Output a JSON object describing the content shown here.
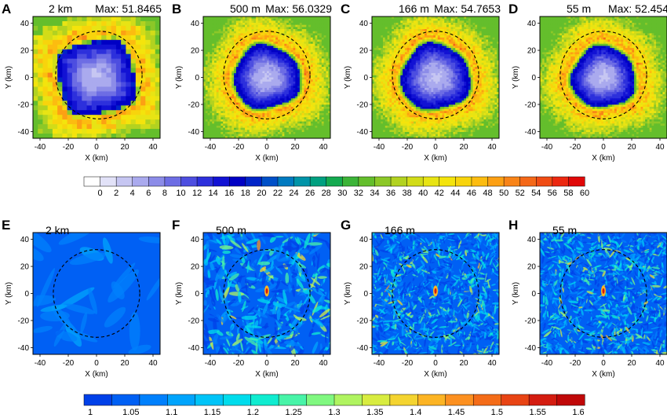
{
  "figure": {
    "rows": [
      {
        "panels": [
          {
            "letter": "A",
            "title": "2 km",
            "max_label": "Max: 51.8465",
            "pattern": "speed",
            "shape": "square",
            "core": 0.3
          },
          {
            "letter": "B",
            "title": "500 m",
            "max_label": "Max: 56.0329",
            "pattern": "speed",
            "shape": "round",
            "core": 0.26
          },
          {
            "letter": "C",
            "title": "166 m",
            "max_label": "Max: 54.7653",
            "pattern": "speed",
            "shape": "round",
            "core": 0.27
          },
          {
            "letter": "D",
            "title": "55 m",
            "max_label": "Max: 52.454",
            "pattern": "speed",
            "shape": "round",
            "core": 0.25
          }
        ],
        "colorbar": {
          "labels": [
            "0",
            "2",
            "4",
            "6",
            "8",
            "10",
            "12",
            "14",
            "16",
            "18",
            "20",
            "22",
            "24",
            "26",
            "28",
            "30",
            "32",
            "34",
            "36",
            "38",
            "40",
            "42",
            "44",
            "46",
            "48",
            "50",
            "52",
            "54",
            "56",
            "58",
            "60"
          ],
          "colors": [
            "#ffffff",
            "#e2e2f8",
            "#c6c6f2",
            "#aaaaee",
            "#8c8ce8",
            "#6d6de4",
            "#4d4ee0",
            "#2d30dc",
            "#1212d4",
            "#0000c4",
            "#0024c8",
            "#0050c8",
            "#007ac0",
            "#0094a8",
            "#00a080",
            "#14aa50",
            "#3cb438",
            "#64be2c",
            "#8cc828",
            "#b2d220",
            "#d2dc18",
            "#e8e414",
            "#f4e40c",
            "#f8d40c",
            "#fcbc10",
            "#fca014",
            "#f88418",
            "#f46818",
            "#f04c14",
            "#ec2810",
            "#e00808"
          ]
        }
      },
      {
        "panels": [
          {
            "letter": "E",
            "title": "2 km",
            "pattern": "ratio",
            "noise": "smooth"
          },
          {
            "letter": "F",
            "title": "500 m",
            "pattern": "ratio",
            "noise": "medium"
          },
          {
            "letter": "G",
            "title": "166 m",
            "pattern": "ratio",
            "noise": "fine"
          },
          {
            "letter": "H",
            "title": "55 m",
            "pattern": "ratio",
            "noise": "fine"
          }
        ],
        "colorbar": {
          "labels": [
            "1",
            "1.05",
            "1.1",
            "1.15",
            "1.2",
            "1.25",
            "1.3",
            "1.35",
            "1.4",
            "1.45",
            "1.5",
            "1.55",
            "1.6"
          ],
          "colors": [
            "#0040e8",
            "#0060f4",
            "#0080fc",
            "#00a4fc",
            "#00c4f8",
            "#00dcec",
            "#10ecd0",
            "#48f4a8",
            "#80f880",
            "#b0f460",
            "#d8ec40",
            "#f4d430",
            "#fcb424",
            "#fc9020",
            "#f46c18",
            "#e84414",
            "#d41c10",
            "#c00808"
          ]
        }
      }
    ],
    "axes": {
      "x_label": "X (km)",
      "y_label": "Y (km)",
      "ticks": [
        "-40",
        "-20",
        "0",
        "20",
        "40"
      ]
    }
  },
  "chart_data": [
    {
      "type": "heatmap",
      "panel": "A",
      "title": "2 km",
      "annotation": "Max: 51.8465",
      "xlabel": "X (km)",
      "ylabel": "Y (km)",
      "xlim": [
        -45,
        45
      ],
      "ylim": [
        -45,
        45
      ],
      "colorbar_range": [
        0,
        60
      ],
      "max": 51.8465
    },
    {
      "type": "heatmap",
      "panel": "B",
      "title": "500 m",
      "annotation": "Max: 56.0329",
      "xlabel": "X (km)",
      "ylabel": "Y (km)",
      "xlim": [
        -45,
        45
      ],
      "ylim": [
        -45,
        45
      ],
      "colorbar_range": [
        0,
        60
      ],
      "max": 56.0329
    },
    {
      "type": "heatmap",
      "panel": "C",
      "title": "166 m",
      "annotation": "Max: 54.7653",
      "xlabel": "X (km)",
      "ylabel": "Y (km)",
      "xlim": [
        -45,
        45
      ],
      "ylim": [
        -45,
        45
      ],
      "colorbar_range": [
        0,
        60
      ],
      "max": 54.7653
    },
    {
      "type": "heatmap",
      "panel": "D",
      "title": "55 m",
      "annotation": "Max: 52.454",
      "xlabel": "X (km)",
      "ylabel": "Y (km)",
      "xlim": [
        -45,
        45
      ],
      "ylim": [
        -45,
        45
      ],
      "colorbar_range": [
        0,
        60
      ],
      "max": 52.454
    },
    {
      "type": "heatmap",
      "panel": "E",
      "title": "2 km",
      "xlabel": "X (km)",
      "ylabel": "Y (km)",
      "xlim": [
        -45,
        45
      ],
      "ylim": [
        -45,
        45
      ],
      "colorbar_range": [
        1,
        1.6
      ]
    },
    {
      "type": "heatmap",
      "panel": "F",
      "title": "500 m",
      "xlabel": "X (km)",
      "ylabel": "Y (km)",
      "xlim": [
        -45,
        45
      ],
      "ylim": [
        -45,
        45
      ],
      "colorbar_range": [
        1,
        1.6
      ]
    },
    {
      "type": "heatmap",
      "panel": "G",
      "title": "166 m",
      "xlabel": "X (km)",
      "ylabel": "Y (km)",
      "xlim": [
        -45,
        45
      ],
      "ylim": [
        -45,
        45
      ],
      "colorbar_range": [
        1,
        1.6
      ]
    },
    {
      "type": "heatmap",
      "panel": "H",
      "title": "55 m",
      "xlabel": "X (km)",
      "ylabel": "Y (km)",
      "xlim": [
        -45,
        45
      ],
      "ylim": [
        -45,
        45
      ],
      "colorbar_range": [
        1,
        1.6
      ]
    }
  ]
}
